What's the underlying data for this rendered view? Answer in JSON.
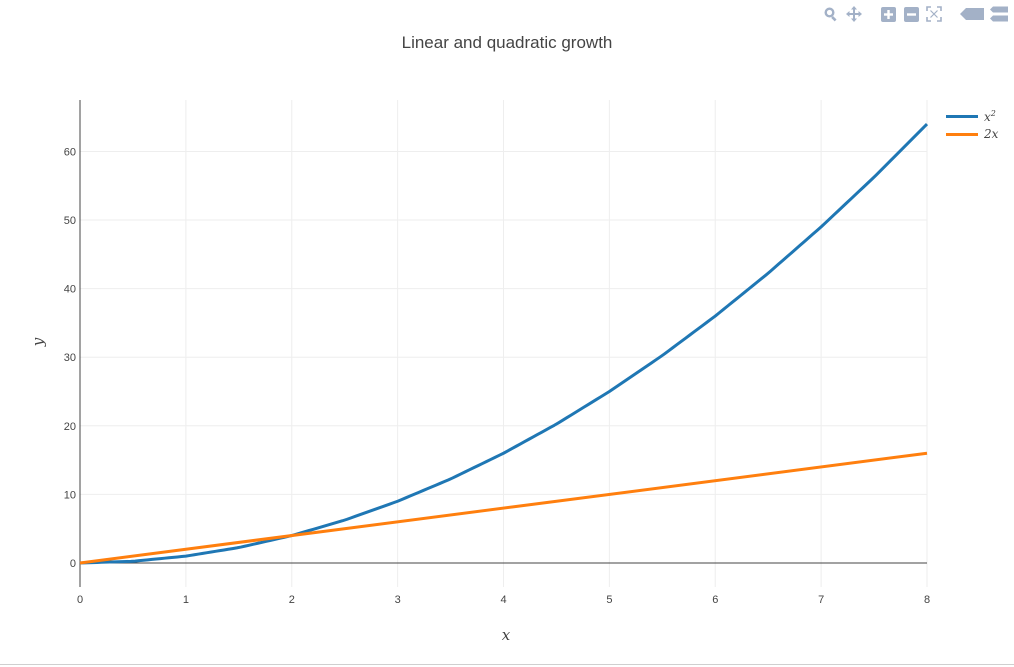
{
  "modebar": {
    "buttons": [
      "zoom-icon",
      "pan-icon",
      "zoom-in-icon",
      "zoom-out-icon",
      "autoscale-icon",
      "hover-closest-icon",
      "hover-compare-icon"
    ],
    "icon_color": "#a3b1c7"
  },
  "chart_data": {
    "type": "line",
    "title": "Linear and quadratic growth",
    "xlabel": "x",
    "ylabel": "y",
    "xlim": [
      0,
      8
    ],
    "ylim": [
      -3.5,
      67.5
    ],
    "x_ticks": [
      0,
      1,
      2,
      3,
      4,
      5,
      6,
      7,
      8
    ],
    "y_ticks": [
      0,
      10,
      20,
      30,
      40,
      50,
      60
    ],
    "grid": true,
    "legend_position": "top-right",
    "series": [
      {
        "name": "x²",
        "name_base": "x",
        "name_sup": "2",
        "color": "#1f77b4",
        "x": [
          0,
          0.5,
          1,
          1.5,
          2,
          2.5,
          3,
          3.5,
          4,
          4.5,
          5,
          5.5,
          6,
          6.5,
          7,
          7.5,
          8
        ],
        "y": [
          0,
          0.25,
          1,
          2.25,
          4,
          6.25,
          9,
          12.25,
          16,
          20.25,
          25,
          30.25,
          36,
          42.25,
          49,
          56.25,
          64
        ]
      },
      {
        "name": "2x",
        "name_base": "2x",
        "name_sup": "",
        "color": "#ff7f0e",
        "x": [
          0,
          8
        ],
        "y": [
          0,
          16
        ]
      }
    ]
  }
}
